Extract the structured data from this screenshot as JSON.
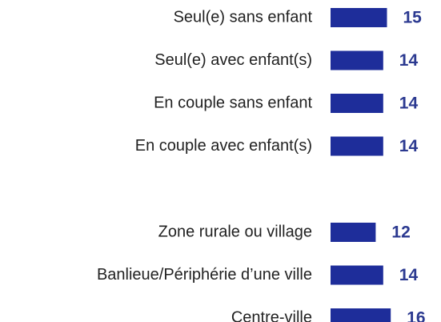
{
  "chart_data": [
    {
      "type": "bar",
      "orientation": "horizontal",
      "color": "#1e2d9a",
      "categories": [
        "Seul(e) sans enfant",
        "Seul(e) avec enfant(s)",
        "En couple sans enfant",
        "En couple avec enfant(s)"
      ],
      "values": [
        15,
        14,
        14,
        14
      ]
    },
    {
      "type": "bar",
      "orientation": "horizontal",
      "color": "#1e2d9a",
      "categories": [
        "Zone rurale ou village",
        "Banlieue/Périphérie d’une ville",
        "Centre-ville"
      ],
      "values": [
        12,
        14,
        16
      ]
    }
  ]
}
